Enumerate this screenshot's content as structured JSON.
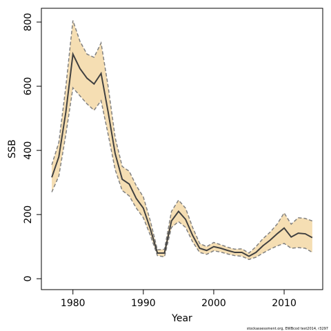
{
  "chart_data": {
    "type": "line",
    "x_label": "Year",
    "y_label": "SSB",
    "footnote": "stockassessment.org, EWBcod test2014, r3297",
    "x": [
      1977,
      1978,
      1979,
      1980,
      1981,
      1982,
      1983,
      1984,
      1985,
      1986,
      1987,
      1988,
      1989,
      1990,
      1991,
      1992,
      1993,
      1994,
      1995,
      1996,
      1997,
      1998,
      1999,
      2000,
      2001,
      2002,
      2003,
      2004,
      2005,
      2006,
      2007,
      2008,
      2009,
      2010,
      2011,
      2012,
      2013,
      2014
    ],
    "series": [
      {
        "color": "#404040",
        "values": [
          316,
          380,
          520,
          700,
          655,
          625,
          607,
          640,
          520,
          390,
          310,
          295,
          250,
          220,
          155,
          80,
          80,
          180,
          210,
          185,
          135,
          95,
          88,
          100,
          95,
          88,
          82,
          82,
          70,
          82,
          103,
          120,
          140,
          158,
          130,
          142,
          140,
          128
        ]
      }
    ],
    "band": {
      "color": "#f5deb3",
      "line_color": "#808080",
      "upper": [
        355,
        425,
        600,
        805,
        740,
        700,
        690,
        735,
        600,
        440,
        350,
        335,
        290,
        255,
        180,
        90,
        92,
        210,
        245,
        220,
        160,
        110,
        100,
        113,
        106,
        98,
        92,
        93,
        80,
        100,
        125,
        145,
        170,
        205,
        170,
        190,
        188,
        180
      ],
      "lower": [
        270,
        320,
        450,
        595,
        570,
        545,
        525,
        555,
        450,
        340,
        275,
        258,
        220,
        190,
        135,
        72,
        68,
        160,
        178,
        160,
        115,
        82,
        76,
        87,
        83,
        77,
        72,
        70,
        60,
        67,
        80,
        92,
        102,
        110,
        95,
        97,
        95,
        82
      ]
    },
    "xlim": [
      1975.52,
      2015.48
    ],
    "xticks": [
      1980,
      1990,
      2000,
      2010
    ],
    "ylim": [
      -34,
      843
    ],
    "yticks": [
      0,
      200,
      400,
      600,
      800
    ]
  }
}
